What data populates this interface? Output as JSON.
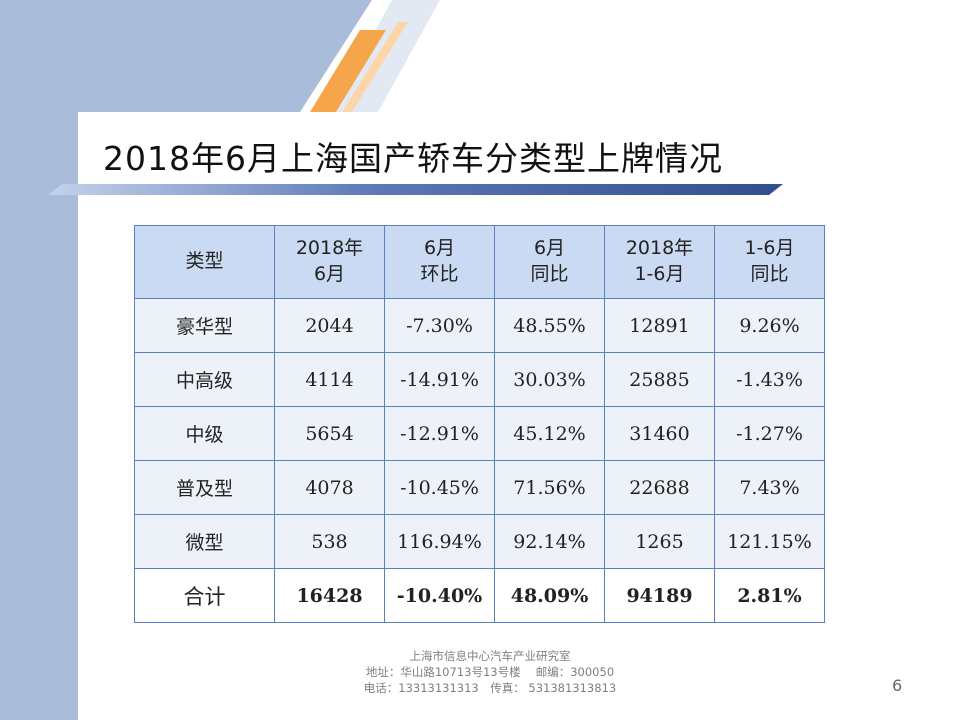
{
  "slide": {
    "title": "2018年6月上海国产轿车分类型上牌情况",
    "page_number": "6"
  },
  "table": {
    "headers": [
      [
        "类型"
      ],
      [
        "2018年",
        "6月"
      ],
      [
        "6月",
        "环比"
      ],
      [
        "6月",
        "同比"
      ],
      [
        "2018年",
        "1-6月"
      ],
      [
        "1-6月",
        "同比"
      ]
    ],
    "rows": [
      [
        "豪华型",
        "2044",
        "-7.30%",
        "48.55%",
        "12891",
        "9.26%"
      ],
      [
        "中高级",
        "4114",
        "-14.91%",
        "30.03%",
        "25885",
        "-1.43%"
      ],
      [
        "中级",
        "5654",
        "-12.91%",
        "45.12%",
        "31460",
        "-1.27%"
      ],
      [
        "普及型",
        "4078",
        "-10.45%",
        "71.56%",
        "22688",
        "7.43%"
      ],
      [
        "微型",
        "538",
        "116.94%",
        "92.14%",
        "1265",
        "121.15%"
      ]
    ],
    "total": [
      "合计",
      "16428",
      "-10.40%",
      "48.09%",
      "94189",
      "2.81%"
    ]
  },
  "footer": {
    "line1": "上海市信息中心汽车产业研究室",
    "line2": "地址：华山路10713号13号楼　 邮编：300050",
    "line3": "电话：13313131313　传真： 531381313813"
  },
  "colors": {
    "band": "#a9bcd9",
    "header_fill": "#c9daf2",
    "cell_fill": "#edf1f8",
    "border": "#5b7fbf",
    "accent_orange": "#f5a64a"
  }
}
